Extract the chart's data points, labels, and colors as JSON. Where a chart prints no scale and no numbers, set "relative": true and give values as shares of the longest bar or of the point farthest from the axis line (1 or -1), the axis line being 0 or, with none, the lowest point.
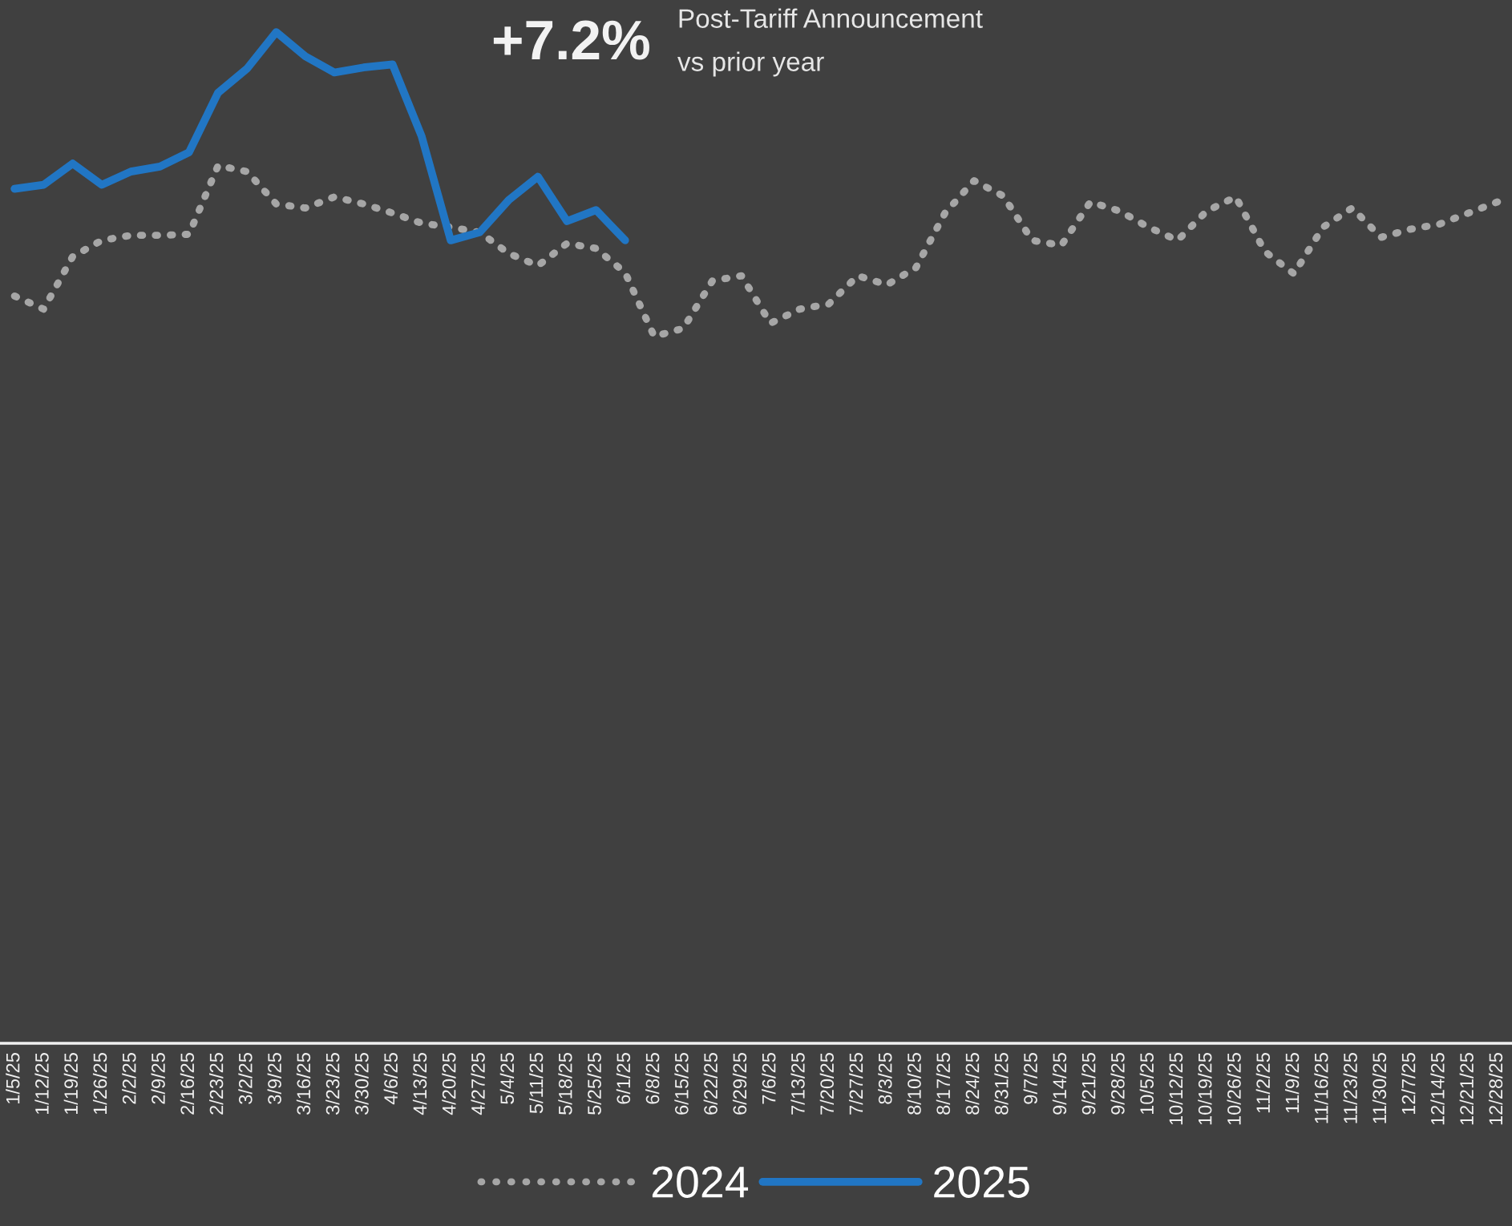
{
  "chart_data": {
    "type": "line",
    "relative": true,
    "legend": "bottom",
    "grid": false,
    "marker": "none",
    "annotations": [
      "+7.2%",
      "Post-Tariff Announcement",
      "vs prior year"
    ],
    "categories": [
      "1/5/25",
      "1/12/25",
      "1/19/25",
      "1/26/25",
      "2/2/25",
      "2/9/25",
      "2/16/25",
      "2/23/25",
      "3/2/25",
      "3/9/25",
      "3/16/25",
      "3/23/25",
      "3/30/25",
      "4/6/25",
      "4/13/25",
      "4/20/25",
      "4/27/25",
      "5/4/25",
      "5/11/25",
      "5/18/25",
      "5/25/25",
      "6/1/25",
      "6/8/25",
      "6/15/25",
      "6/22/25",
      "6/29/25",
      "7/6/25",
      "7/13/25",
      "7/20/25",
      "7/27/25",
      "8/3/25",
      "8/10/25",
      "8/17/25",
      "8/24/25",
      "8/31/25",
      "9/7/25",
      "9/14/25",
      "9/21/25",
      "9/28/25",
      "10/5/25",
      "10/12/25",
      "10/19/25",
      "10/26/25",
      "11/2/25",
      "11/9/25",
      "11/16/25",
      "11/23/25",
      "11/30/25",
      "12/7/25",
      "12/14/25",
      "12/21/25",
      "12/28/25"
    ],
    "series": [
      {
        "name": "2024",
        "color": "#a6a6a6",
        "line_style": "dotted",
        "values": [
          0.739,
          0.726,
          0.778,
          0.794,
          0.799,
          0.799,
          0.8,
          0.868,
          0.862,
          0.83,
          0.826,
          0.837,
          0.83,
          0.821,
          0.811,
          0.807,
          0.802,
          0.781,
          0.769,
          0.791,
          0.786,
          0.762,
          0.699,
          0.707,
          0.754,
          0.759,
          0.712,
          0.726,
          0.731,
          0.759,
          0.75,
          0.767,
          0.821,
          0.853,
          0.838,
          0.794,
          0.789,
          0.832,
          0.823,
          0.807,
          0.794,
          0.823,
          0.837,
          0.783,
          0.761,
          0.807,
          0.826,
          0.797,
          0.805,
          0.81,
          0.821,
          0.832
        ]
      },
      {
        "name": "2025",
        "color": "#2176c4",
        "line_style": "solid",
        "values": [
          0.845,
          0.849,
          0.87,
          0.849,
          0.862,
          0.867,
          0.881,
          0.94,
          0.964,
          1,
          0.976,
          0.96,
          0.965,
          0.968,
          0.897,
          0.794,
          0.802,
          0.834,
          0.857,
          0.813,
          0.824,
          0.794,
          null,
          null,
          null,
          null,
          null,
          null,
          null,
          null,
          null,
          null,
          null,
          null,
          null,
          null,
          null,
          null,
          null,
          null,
          null,
          null,
          null,
          null,
          null,
          null,
          null,
          null,
          null,
          null,
          null,
          null
        ]
      }
    ]
  }
}
